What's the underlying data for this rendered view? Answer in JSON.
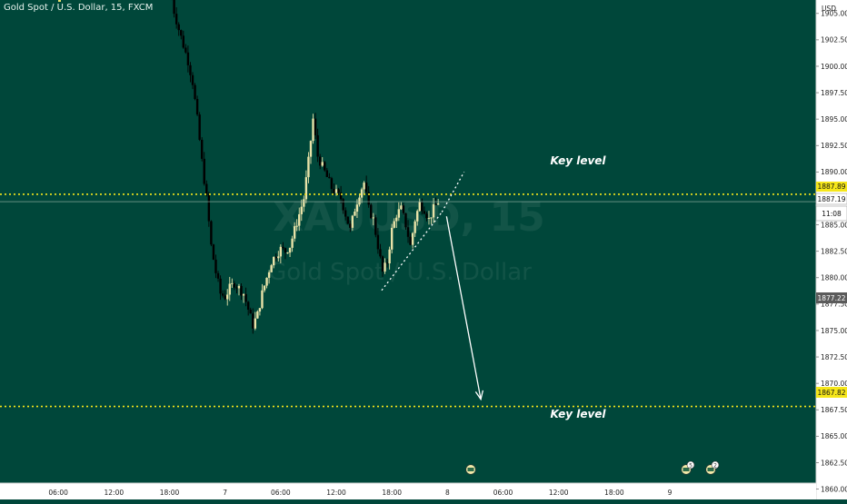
{
  "header": {
    "symbol_title": "Gold Spot / U.S. Dollar, 15, FXCM"
  },
  "watermark": {
    "symbol": "XAUUSD, 15",
    "description": "Gold Spot / U.S. Dollar"
  },
  "price_axis": {
    "currency": "USD",
    "labels": [
      "1905.00",
      "1902.50",
      "1900.00",
      "1897.50",
      "1895.00",
      "1892.50",
      "1890.00",
      "1887.50",
      "1885.00",
      "1882.50",
      "1880.00",
      "1877.50",
      "1875.00",
      "1872.50",
      "1870.00",
      "1867.50",
      "1865.00",
      "1862.50",
      "1860.00"
    ]
  },
  "price_badges": {
    "upper_level": "1887.89",
    "last_price": "1887.19",
    "countdown": "11:08",
    "gray_price": "1877.22",
    "lower_level": "1867.82"
  },
  "time_axis": {
    "labels": [
      "06:00",
      "12:00",
      "18:00",
      "7",
      "06:00",
      "12:00",
      "18:00",
      "8",
      "06:00",
      "12:00",
      "18:00",
      "9"
    ]
  },
  "annotations": {
    "key_level_upper": "Key level",
    "key_level_lower": "Key level"
  },
  "event_markers": [
    "5",
    "2"
  ],
  "colors": {
    "background": "#00473a",
    "candle_up": "#e8e3a8",
    "candle_down": "#000000",
    "level_line": "#f5e61a",
    "arrow": "#ffffff",
    "axis_bg": "#ffffff",
    "axis_text": "#1e1e1e"
  },
  "chart_data": {
    "type": "candlestick",
    "ylim": [
      1859,
      1907
    ],
    "horizontal_levels": [
      1887.89,
      1867.82
    ],
    "close_path": [
      [
        18.0,
        1907.5
      ],
      [
        18.5,
        1905.2
      ],
      [
        19.0,
        1903.5
      ],
      [
        19.5,
        1902.0
      ],
      [
        20.0,
        1900.5
      ],
      [
        20.5,
        1898.5
      ],
      [
        21.0,
        1895.0
      ],
      [
        21.5,
        1891.0
      ],
      [
        22.0,
        1887.5
      ],
      [
        22.5,
        1883.0
      ],
      [
        23.0,
        1880.5
      ],
      [
        23.5,
        1878.5
      ],
      [
        24.0,
        1878.2
      ],
      [
        24.5,
        1879.0
      ],
      [
        25.0,
        1879.5
      ],
      [
        25.5,
        1879.0
      ],
      [
        26.0,
        1878.5
      ],
      [
        26.5,
        1877.0
      ],
      [
        27.0,
        1875.5
      ],
      [
        27.5,
        1876.5
      ],
      [
        28.0,
        1878.5
      ],
      [
        28.5,
        1880.0
      ],
      [
        29.0,
        1881.5
      ],
      [
        29.5,
        1882.2
      ],
      [
        30.0,
        1882.7
      ],
      [
        30.5,
        1882.5
      ],
      [
        31.0,
        1883.0
      ],
      [
        31.5,
        1884.5
      ],
      [
        32.0,
        1886.0
      ],
      [
        32.5,
        1887.5
      ],
      [
        33.0,
        1891.0
      ],
      [
        33.5,
        1895.0
      ],
      [
        34.0,
        1891.5
      ],
      [
        34.5,
        1890.5
      ],
      [
        35.0,
        1889.5
      ],
      [
        35.5,
        1888.5
      ],
      [
        36.0,
        1888.0
      ],
      [
        36.5,
        1887.5
      ],
      [
        37.0,
        1886.0
      ],
      [
        37.5,
        1884.5
      ],
      [
        38.0,
        1886.5
      ],
      [
        38.5,
        1888.0
      ],
      [
        39.0,
        1889.0
      ],
      [
        39.5,
        1886.5
      ],
      [
        40.0,
        1885.5
      ],
      [
        40.5,
        1883.0
      ],
      [
        41.0,
        1880.5
      ],
      [
        41.5,
        1881.5
      ],
      [
        42.0,
        1884.5
      ],
      [
        42.5,
        1886.0
      ],
      [
        43.0,
        1886.5
      ],
      [
        43.5,
        1885.0
      ],
      [
        44.0,
        1883.0
      ],
      [
        44.5,
        1885.5
      ],
      [
        45.0,
        1887.0
      ],
      [
        45.5,
        1886.5
      ],
      [
        46.0,
        1885.5
      ],
      [
        46.5,
        1886.5
      ],
      [
        47.0,
        1887.19
      ]
    ],
    "trend_lines": [
      {
        "name": "support-triangle",
        "from": [
          40.9,
          1878.8
        ],
        "to": [
          47.4,
          1886.2
        ]
      },
      {
        "name": "extension",
        "from": [
          47.4,
          1886.2
        ],
        "to": [
          49.8,
          1890.0
        ]
      }
    ],
    "projection_arrow": {
      "from": [
        47.9,
        1885.8
      ],
      "to": [
        51.6,
        1868.5
      ]
    }
  }
}
